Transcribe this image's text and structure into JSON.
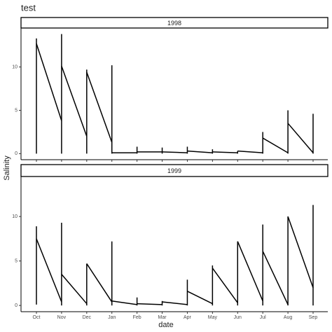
{
  "chart_data": {
    "type": "line",
    "title": "test",
    "x_label": "date",
    "y_label": "Salinity",
    "categories": [
      "Oct",
      "Nov",
      "Dec",
      "Jan",
      "Feb",
      "Mar",
      "Apr",
      "May",
      "Jun",
      "Jul",
      "Aug",
      "Sep"
    ],
    "ylim": [
      -0.7,
      14.5
    ],
    "yticks": [
      0,
      5,
      10
    ],
    "color": "#000000",
    "panels": [
      {
        "label": "1998",
        "low": [
          0,
          0,
          0,
          0,
          0,
          0,
          0,
          0,
          0,
          0,
          0,
          0
        ],
        "high": [
          13.3,
          13.8,
          9.7,
          10.2,
          0.8,
          0.7,
          0.8,
          0.5,
          0.3,
          2.5,
          5.0,
          4.6
        ],
        "start": [
          12.7,
          10.1,
          9.4,
          0.1,
          0.2,
          0.2,
          0.3,
          0.2,
          0.3,
          1.8,
          3.5,
          null
        ],
        "end": [
          3.8,
          2.0,
          1.3,
          0.1,
          0.2,
          0.1,
          0.1,
          0.1,
          0.1,
          0.1,
          0.1,
          null
        ]
      },
      {
        "label": "1999",
        "low": [
          0.1,
          0,
          0,
          0,
          0,
          0,
          0,
          0,
          0,
          0,
          0,
          0
        ],
        "high": [
          8.9,
          9.3,
          4.7,
          7.2,
          0.9,
          0.5,
          2.9,
          4.5,
          7.2,
          9.1,
          10.0,
          11.3
        ],
        "start": [
          7.5,
          3.5,
          4.7,
          0.5,
          0.2,
          0.4,
          1.6,
          4.2,
          7.2,
          6.1,
          10.0,
          null
        ],
        "end": [
          0.4,
          0.2,
          0.4,
          0.1,
          0.1,
          0.1,
          0.2,
          0.3,
          0.5,
          0.1,
          2.0,
          null
        ]
      }
    ]
  }
}
